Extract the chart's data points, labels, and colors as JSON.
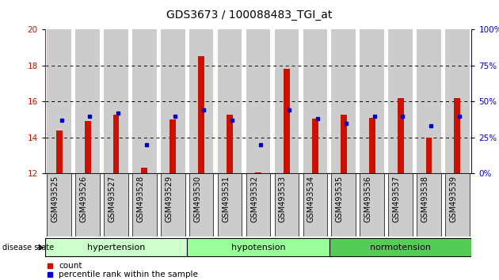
{
  "title": "GDS3673 / 100088483_TGI_at",
  "samples": [
    "GSM493525",
    "GSM493526",
    "GSM493527",
    "GSM493528",
    "GSM493529",
    "GSM493530",
    "GSM493531",
    "GSM493532",
    "GSM493533",
    "GSM493534",
    "GSM493535",
    "GSM493536",
    "GSM493537",
    "GSM493538",
    "GSM493539"
  ],
  "red_values": [
    14.4,
    14.9,
    15.25,
    12.35,
    15.0,
    18.5,
    15.25,
    12.05,
    17.8,
    15.05,
    15.25,
    15.1,
    16.2,
    14.0,
    16.2
  ],
  "blue_pct": [
    37,
    40,
    42,
    20,
    40,
    44,
    37,
    20,
    44,
    38,
    35,
    40,
    40,
    33,
    40
  ],
  "ylim_left": [
    12,
    20
  ],
  "ylim_right": [
    0,
    100
  ],
  "yticks_left": [
    12,
    14,
    16,
    18,
    20
  ],
  "yticks_right": [
    0,
    25,
    50,
    75,
    100
  ],
  "groups": [
    {
      "label": "hypertension",
      "start": 0,
      "end": 5,
      "color": "#ccffcc"
    },
    {
      "label": "hypotension",
      "start": 5,
      "end": 10,
      "color": "#99ff99"
    },
    {
      "label": "normotension",
      "start": 10,
      "end": 15,
      "color": "#55cc55"
    }
  ],
  "bar_bottom": 12,
  "red_color": "#cc1100",
  "blue_color": "#0000cc",
  "bar_bg_color": "#cccccc",
  "legend_count_label": "count",
  "legend_pct_label": "percentile rank within the sample",
  "xlabel_disease": "disease state",
  "title_fontsize": 10,
  "axis_fontsize": 7.5,
  "tick_fontsize": 7,
  "group_fontsize": 8
}
